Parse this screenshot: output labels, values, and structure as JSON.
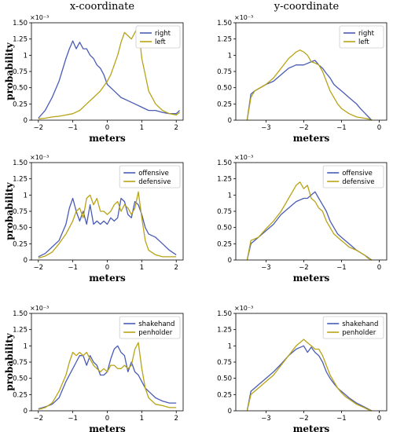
{
  "columns": [
    "x-coordinate",
    "y-coordinate"
  ],
  "colors": {
    "series_a": "#4a5cb5",
    "series_b": "#b8a315"
  },
  "chart_data": [
    {
      "type": "line",
      "row": 0,
      "col": 0,
      "xlabel": "meters",
      "ylabel": "probability",
      "y_scale_note": "×10⁻³",
      "xlim": [
        -2.2,
        2.2
      ],
      "ylim": [
        0,
        1.5
      ],
      "xticks": [
        -2,
        -1,
        0,
        1,
        2
      ],
      "yticks": [
        0,
        0.25,
        0.5,
        0.75,
        1.0,
        1.25,
        1.5
      ],
      "legend_position": "top-right",
      "series": [
        {
          "name": "right",
          "x": [
            -2.0,
            -1.8,
            -1.6,
            -1.4,
            -1.2,
            -1.1,
            -1.0,
            -0.9,
            -0.8,
            -0.7,
            -0.6,
            -0.5,
            -0.4,
            -0.3,
            -0.2,
            -0.1,
            0.0,
            0.2,
            0.4,
            0.6,
            0.8,
            1.0,
            1.2,
            1.4,
            1.6,
            1.8,
            2.0,
            2.1
          ],
          "y": [
            0.03,
            0.15,
            0.35,
            0.6,
            0.95,
            1.1,
            1.22,
            1.1,
            1.2,
            1.1,
            1.1,
            1.0,
            0.95,
            0.85,
            0.8,
            0.7,
            0.55,
            0.45,
            0.35,
            0.3,
            0.25,
            0.2,
            0.15,
            0.15,
            0.12,
            0.1,
            0.1,
            0.15
          ]
        },
        {
          "name": "left",
          "x": [
            -2.0,
            -1.8,
            -1.6,
            -1.4,
            -1.2,
            -1.0,
            -0.8,
            -0.6,
            -0.4,
            -0.2,
            0.0,
            0.1,
            0.2,
            0.3,
            0.4,
            0.5,
            0.6,
            0.7,
            0.8,
            0.9,
            0.95,
            1.0,
            1.1,
            1.2,
            1.4,
            1.6,
            1.8,
            2.0,
            2.1
          ],
          "y": [
            0.02,
            0.03,
            0.05,
            0.06,
            0.08,
            0.1,
            0.15,
            0.25,
            0.35,
            0.45,
            0.6,
            0.7,
            0.85,
            1.0,
            1.2,
            1.35,
            1.3,
            1.25,
            1.35,
            1.45,
            1.2,
            0.95,
            0.7,
            0.45,
            0.25,
            0.15,
            0.1,
            0.08,
            0.12
          ]
        }
      ]
    },
    {
      "type": "line",
      "row": 0,
      "col": 1,
      "xlabel": "meters",
      "ylabel": "",
      "y_scale_note": "×10⁻³",
      "xlim": [
        -3.8,
        0.2
      ],
      "ylim": [
        0,
        1.5
      ],
      "xticks": [
        -3,
        -2,
        -1,
        0
      ],
      "yticks": [
        0,
        0.25,
        0.5,
        0.75,
        1.0,
        1.25,
        1.5
      ],
      "legend_position": "top-right",
      "series": [
        {
          "name": "right",
          "x": [
            -3.5,
            -3.4,
            -3.3,
            -3.0,
            -2.8,
            -2.6,
            -2.4,
            -2.2,
            -2.0,
            -1.8,
            -1.7,
            -1.6,
            -1.5,
            -1.4,
            -1.3,
            -1.2,
            -1.1,
            -1.0,
            -0.9,
            -0.8,
            -0.7,
            -0.6,
            -0.5,
            -0.4,
            -0.3,
            -0.2
          ],
          "y": [
            0.0,
            0.4,
            0.45,
            0.55,
            0.6,
            0.7,
            0.8,
            0.85,
            0.85,
            0.9,
            0.92,
            0.85,
            0.8,
            0.72,
            0.65,
            0.55,
            0.5,
            0.45,
            0.4,
            0.35,
            0.3,
            0.25,
            0.18,
            0.12,
            0.06,
            0.0
          ]
        },
        {
          "name": "left",
          "x": [
            -3.5,
            -3.4,
            -3.3,
            -3.0,
            -2.8,
            -2.6,
            -2.4,
            -2.2,
            -2.1,
            -2.0,
            -1.9,
            -1.8,
            -1.7,
            -1.6,
            -1.5,
            -1.4,
            -1.3,
            -1.2,
            -1.1,
            -1.0,
            -0.8,
            -0.6,
            -0.4,
            -0.3,
            -0.2
          ],
          "y": [
            0.0,
            0.35,
            0.45,
            0.55,
            0.65,
            0.8,
            0.95,
            1.05,
            1.08,
            1.05,
            1.0,
            0.9,
            0.88,
            0.85,
            0.75,
            0.6,
            0.45,
            0.35,
            0.25,
            0.18,
            0.1,
            0.05,
            0.03,
            0.02,
            0.0
          ]
        }
      ]
    },
    {
      "type": "line",
      "row": 1,
      "col": 0,
      "xlabel": "meters",
      "ylabel": "probability",
      "y_scale_note": "×10⁻³",
      "xlim": [
        -2.2,
        2.2
      ],
      "ylim": [
        0,
        1.5
      ],
      "xticks": [
        -2,
        -1,
        0,
        1,
        2
      ],
      "yticks": [
        0,
        0.25,
        0.5,
        0.75,
        1.0,
        1.25,
        1.5
      ],
      "legend_position": "top-right",
      "series": [
        {
          "name": "offensive",
          "x": [
            -2.0,
            -1.8,
            -1.6,
            -1.4,
            -1.2,
            -1.1,
            -1.0,
            -0.9,
            -0.8,
            -0.7,
            -0.6,
            -0.5,
            -0.4,
            -0.3,
            -0.2,
            -0.1,
            0.0,
            0.1,
            0.2,
            0.3,
            0.4,
            0.5,
            0.6,
            0.7,
            0.8,
            0.9,
            1.0,
            1.1,
            1.2,
            1.4,
            1.6,
            1.8,
            2.0
          ],
          "y": [
            0.05,
            0.1,
            0.2,
            0.3,
            0.55,
            0.8,
            0.95,
            0.75,
            0.6,
            0.75,
            0.55,
            0.85,
            0.55,
            0.6,
            0.55,
            0.6,
            0.55,
            0.65,
            0.6,
            0.65,
            0.95,
            0.9,
            0.7,
            0.65,
            0.9,
            0.85,
            0.7,
            0.5,
            0.4,
            0.35,
            0.25,
            0.15,
            0.08
          ]
        },
        {
          "name": "defensive",
          "x": [
            -2.0,
            -1.8,
            -1.6,
            -1.4,
            -1.2,
            -1.0,
            -0.9,
            -0.8,
            -0.7,
            -0.6,
            -0.5,
            -0.4,
            -0.3,
            -0.2,
            -0.1,
            0.0,
            0.1,
            0.2,
            0.3,
            0.4,
            0.5,
            0.6,
            0.7,
            0.8,
            0.9,
            1.0,
            1.1,
            1.2,
            1.4,
            1.6,
            1.8,
            2.0
          ],
          "y": [
            0.03,
            0.06,
            0.12,
            0.25,
            0.4,
            0.6,
            0.75,
            0.8,
            0.65,
            0.95,
            1.0,
            0.85,
            0.95,
            0.75,
            0.75,
            0.7,
            0.75,
            0.85,
            0.9,
            0.75,
            0.85,
            0.8,
            0.7,
            0.8,
            1.05,
            0.65,
            0.3,
            0.15,
            0.08,
            0.05,
            0.05,
            0.05
          ]
        }
      ]
    },
    {
      "type": "line",
      "row": 1,
      "col": 1,
      "xlabel": "meters",
      "ylabel": "",
      "y_scale_note": "×10⁻³",
      "xlim": [
        -3.8,
        0.2
      ],
      "ylim": [
        0,
        1.5
      ],
      "xticks": [
        -3,
        -2,
        -1,
        0
      ],
      "yticks": [
        0,
        0.25,
        0.5,
        0.75,
        1.0,
        1.25,
        1.5
      ],
      "legend_position": "top-right",
      "series": [
        {
          "name": "offensive",
          "x": [
            -3.5,
            -3.4,
            -3.2,
            -3.0,
            -2.8,
            -2.6,
            -2.4,
            -2.2,
            -2.0,
            -1.9,
            -1.8,
            -1.7,
            -1.6,
            -1.5,
            -1.4,
            -1.3,
            -1.2,
            -1.1,
            -1.0,
            -0.9,
            -0.8,
            -0.6,
            -0.4,
            -0.3,
            -0.2
          ],
          "y": [
            0.0,
            0.25,
            0.35,
            0.45,
            0.55,
            0.7,
            0.8,
            0.9,
            0.95,
            0.95,
            1.0,
            1.05,
            0.95,
            0.85,
            0.75,
            0.6,
            0.5,
            0.4,
            0.35,
            0.3,
            0.25,
            0.15,
            0.08,
            0.04,
            0.0
          ]
        },
        {
          "name": "defensive",
          "x": [
            -3.5,
            -3.4,
            -3.2,
            -3.0,
            -2.8,
            -2.6,
            -2.4,
            -2.2,
            -2.1,
            -2.0,
            -1.9,
            -1.8,
            -1.7,
            -1.6,
            -1.5,
            -1.4,
            -1.3,
            -1.2,
            -1.1,
            -1.0,
            -0.9,
            -0.8,
            -0.6,
            -0.4,
            -0.3,
            -0.2
          ],
          "y": [
            0.0,
            0.3,
            0.35,
            0.48,
            0.6,
            0.75,
            0.95,
            1.15,
            1.2,
            1.1,
            1.15,
            0.95,
            0.9,
            0.8,
            0.75,
            0.6,
            0.5,
            0.4,
            0.35,
            0.3,
            0.25,
            0.2,
            0.15,
            0.08,
            0.03,
            0.0
          ]
        }
      ]
    },
    {
      "type": "line",
      "row": 2,
      "col": 0,
      "xlabel": "meters",
      "ylabel": "probability",
      "y_scale_note": "×10⁻³",
      "xlim": [
        -2.2,
        2.2
      ],
      "ylim": [
        0,
        1.5
      ],
      "xticks": [
        -2,
        -1,
        0,
        1,
        2
      ],
      "yticks": [
        0,
        0.25,
        0.5,
        0.75,
        1.0,
        1.25,
        1.5
      ],
      "legend_position": "top-right",
      "series": [
        {
          "name": "shakehand",
          "x": [
            -2.0,
            -1.8,
            -1.6,
            -1.4,
            -1.2,
            -1.0,
            -0.9,
            -0.8,
            -0.7,
            -0.6,
            -0.5,
            -0.4,
            -0.3,
            -0.2,
            -0.1,
            0.0,
            0.1,
            0.2,
            0.3,
            0.4,
            0.5,
            0.6,
            0.7,
            0.8,
            0.9,
            1.0,
            1.1,
            1.2,
            1.4,
            1.6,
            1.8,
            2.0
          ],
          "y": [
            0.03,
            0.06,
            0.1,
            0.2,
            0.45,
            0.65,
            0.75,
            0.85,
            0.85,
            0.7,
            0.85,
            0.75,
            0.7,
            0.55,
            0.55,
            0.6,
            0.8,
            0.95,
            1.0,
            0.9,
            0.85,
            0.6,
            0.75,
            0.6,
            0.55,
            0.45,
            0.35,
            0.3,
            0.2,
            0.15,
            0.12,
            0.12
          ]
        },
        {
          "name": "penholder",
          "x": [
            -2.0,
            -1.8,
            -1.6,
            -1.4,
            -1.2,
            -1.1,
            -1.0,
            -0.9,
            -0.8,
            -0.7,
            -0.6,
            -0.5,
            -0.4,
            -0.3,
            -0.2,
            -0.1,
            0.0,
            0.1,
            0.2,
            0.3,
            0.4,
            0.5,
            0.6,
            0.7,
            0.8,
            0.9,
            1.0,
            1.1,
            1.2,
            1.4,
            1.6,
            1.8,
            2.0
          ],
          "y": [
            0.02,
            0.05,
            0.12,
            0.3,
            0.55,
            0.75,
            0.9,
            0.85,
            0.9,
            0.85,
            0.9,
            0.8,
            0.7,
            0.65,
            0.6,
            0.65,
            0.6,
            0.7,
            0.7,
            0.65,
            0.65,
            0.7,
            0.65,
            0.7,
            0.95,
            1.05,
            0.65,
            0.35,
            0.2,
            0.1,
            0.08,
            0.05,
            0.05
          ]
        }
      ]
    },
    {
      "type": "line",
      "row": 2,
      "col": 1,
      "xlabel": "meters",
      "ylabel": "",
      "y_scale_note": "×10⁻³",
      "xlim": [
        -3.8,
        0.2
      ],
      "ylim": [
        0,
        1.5
      ],
      "xticks": [
        -3,
        -2,
        -1,
        0
      ],
      "yticks": [
        0,
        0.25,
        0.5,
        0.75,
        1.0,
        1.25,
        1.5
      ],
      "legend_position": "top-right",
      "series": [
        {
          "name": "shakehand",
          "x": [
            -3.5,
            -3.4,
            -3.2,
            -3.0,
            -2.8,
            -2.6,
            -2.4,
            -2.2,
            -2.0,
            -1.9,
            -1.8,
            -1.7,
            -1.6,
            -1.5,
            -1.4,
            -1.3,
            -1.2,
            -1.1,
            -1.0,
            -0.9,
            -0.8,
            -0.6,
            -0.4,
            -0.3,
            -0.2
          ],
          "y": [
            0.0,
            0.3,
            0.4,
            0.5,
            0.6,
            0.72,
            0.85,
            0.95,
            1.0,
            0.9,
            0.98,
            0.9,
            0.85,
            0.75,
            0.6,
            0.5,
            0.42,
            0.35,
            0.3,
            0.25,
            0.2,
            0.12,
            0.06,
            0.03,
            0.0
          ]
        },
        {
          "name": "penholder",
          "x": [
            -3.5,
            -3.4,
            -3.2,
            -3.0,
            -2.8,
            -2.6,
            -2.4,
            -2.2,
            -2.1,
            -2.0,
            -1.9,
            -1.8,
            -1.7,
            -1.6,
            -1.5,
            -1.4,
            -1.3,
            -1.2,
            -1.1,
            -1.0,
            -0.9,
            -0.8,
            -0.6,
            -0.4,
            -0.3,
            -0.2
          ],
          "y": [
            0.0,
            0.25,
            0.35,
            0.45,
            0.55,
            0.7,
            0.85,
            1.0,
            1.05,
            1.1,
            1.05,
            1.0,
            0.95,
            0.95,
            0.85,
            0.7,
            0.55,
            0.45,
            0.35,
            0.28,
            0.22,
            0.18,
            0.1,
            0.05,
            0.02,
            0.0
          ]
        }
      ]
    }
  ]
}
